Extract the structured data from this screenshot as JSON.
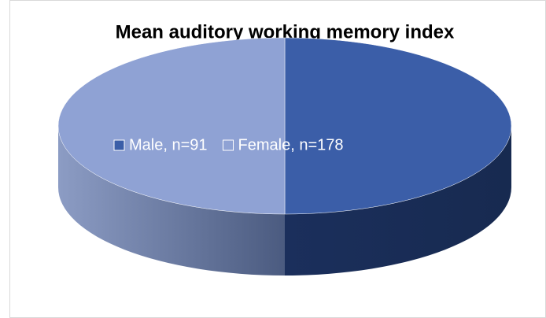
{
  "chart_data": {
    "type": "pie",
    "title": "Mean auditory working memory index",
    "categories": [
      "Male, n=91",
      "Female, n=178"
    ],
    "values": [
      50,
      50
    ],
    "colors": [
      "#3b5ea8",
      "#8fa2d4"
    ],
    "legend": "center"
  }
}
